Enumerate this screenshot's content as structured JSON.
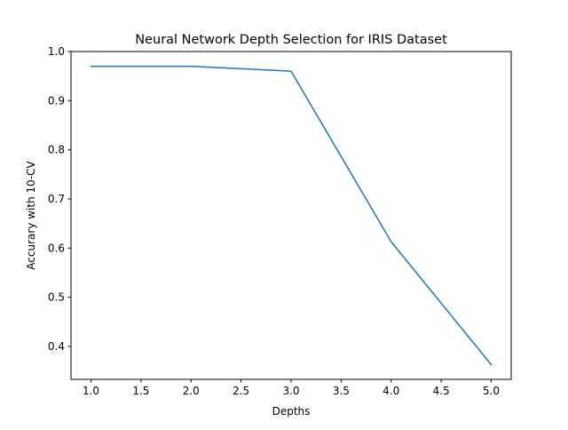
{
  "chart_data": {
    "type": "line",
    "title": "Neural Network Depth Selection for IRIS Dataset",
    "xlabel": "Depths",
    "ylabel": "Accurary with 10-CV",
    "x": [
      1.0,
      2.0,
      3.0,
      4.0,
      5.0
    ],
    "series": [
      {
        "values": [
          0.97,
          0.97,
          0.96,
          0.613,
          0.363
        ],
        "color": "#1f77b4"
      }
    ],
    "xlim": [
      0.8,
      5.2
    ],
    "ylim": [
      0.333,
      1.0
    ],
    "xticks": [
      "1.0",
      "1.5",
      "2.0",
      "2.5",
      "3.0",
      "3.5",
      "4.0",
      "4.5",
      "5.0"
    ],
    "xtick_values": [
      1.0,
      1.5,
      2.0,
      2.5,
      3.0,
      3.5,
      4.0,
      4.5,
      5.0
    ],
    "yticks": [
      "0.4",
      "0.5",
      "0.6",
      "0.7",
      "0.8",
      "0.9",
      "1.0"
    ],
    "ytick_values": [
      0.4,
      0.5,
      0.6,
      0.7,
      0.8,
      0.9,
      1.0
    ],
    "grid": false,
    "legend": "none"
  }
}
